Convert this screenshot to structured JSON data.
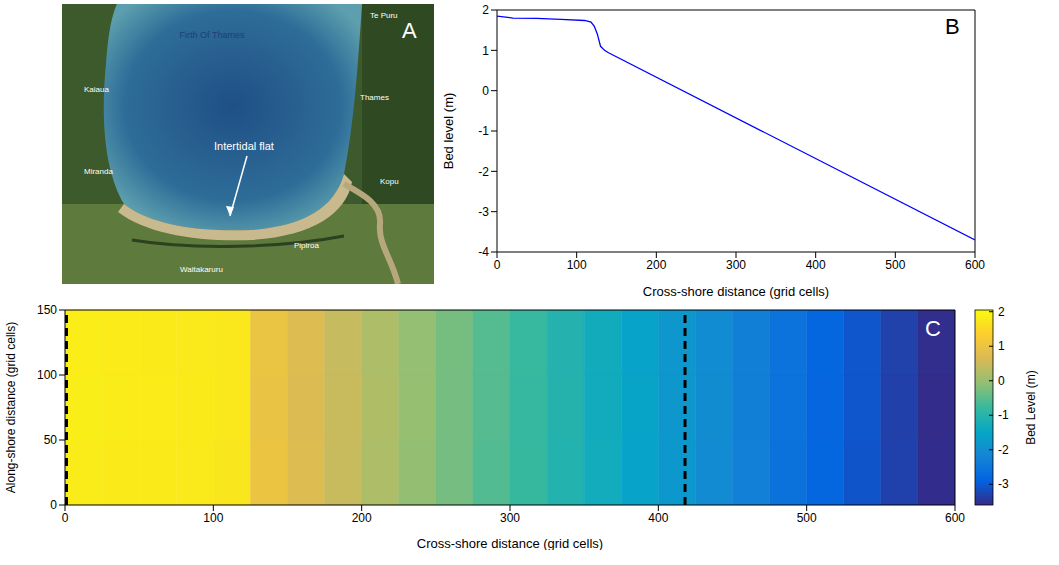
{
  "chart_data": [
    {
      "type": "map",
      "title": "A",
      "annotations": [
        "Firth Of Thames",
        "Te Puru",
        "Kaiaua",
        "Thames",
        "Miranda",
        "Kopu",
        "Pipiroa",
        "Waitakaruru",
        "Intertidal flat"
      ]
    },
    {
      "type": "line",
      "title": "B",
      "x": [
        0,
        20,
        50,
        80,
        110,
        118,
        122,
        126,
        130,
        135,
        140,
        600
      ],
      "values": [
        1.85,
        1.8,
        1.79,
        1.77,
        1.74,
        1.7,
        1.6,
        1.4,
        1.1,
        1.0,
        0.94,
        -3.7
      ],
      "color": "#0000ff",
      "xlim": [
        0,
        600
      ],
      "xticks": [
        0,
        100,
        200,
        300,
        400,
        500,
        600
      ],
      "ylim": [
        -4,
        2
      ],
      "yticks": [
        -4,
        -3,
        -2,
        -1,
        0,
        1,
        2
      ],
      "xlabel": "Cross-shore distance (grid cells)",
      "ylabel": "Bed level (m)",
      "grid": false
    },
    {
      "type": "heatmap",
      "title": "C",
      "x_edges": [
        0,
        25,
        50,
        75,
        100,
        125,
        150,
        175,
        200,
        225,
        250,
        275,
        300,
        325,
        350,
        375,
        400,
        425,
        450,
        475,
        500,
        525,
        550,
        575,
        600
      ],
      "y_edges": [
        0,
        50,
        100,
        150
      ],
      "cells": [
        [
          1.82,
          1.79,
          1.78,
          1.76,
          1.72,
          1.0,
          0.72,
          0.46,
          0.2,
          -0.05,
          -0.3,
          -0.56,
          -0.8,
          -1.06,
          -1.3,
          -1.57,
          -1.8,
          -2.07,
          -2.3,
          -2.58,
          -2.81,
          -3.08,
          -3.31,
          -3.56
        ],
        [
          1.84,
          1.81,
          1.8,
          1.78,
          1.74,
          0.96,
          0.7,
          0.47,
          0.22,
          -0.03,
          -0.3,
          -0.54,
          -0.81,
          -1.04,
          -1.32,
          -1.55,
          -1.82,
          -2.05,
          -2.32,
          -2.56,
          -2.83,
          -3.06,
          -3.33,
          -3.57
        ],
        [
          1.83,
          1.8,
          1.79,
          1.77,
          1.73,
          0.98,
          0.71,
          0.45,
          0.21,
          -0.04,
          -0.29,
          -0.55,
          -0.79,
          -1.05,
          -1.31,
          -1.56,
          -1.81,
          -2.06,
          -2.31,
          -2.57,
          -2.82,
          -3.07,
          -3.32,
          -3.55
        ]
      ],
      "colorbar_lim": [
        -3.6,
        2.05
      ],
      "colorbar_ticks": [
        -3,
        -2,
        -1,
        0,
        1,
        2
      ],
      "colorbar_label": "Bed Level (m)",
      "dashed_lines": [
        1,
        418
      ],
      "xlim": [
        0,
        600
      ],
      "xticks": [
        0,
        100,
        200,
        300,
        400,
        500,
        600
      ],
      "ylim": [
        0,
        150
      ],
      "yticks": [
        0,
        50,
        100,
        150
      ],
      "xlabel": "Cross-shore distance (grid cells)",
      "ylabel": "Along-shore distance (grid cells)"
    }
  ]
}
